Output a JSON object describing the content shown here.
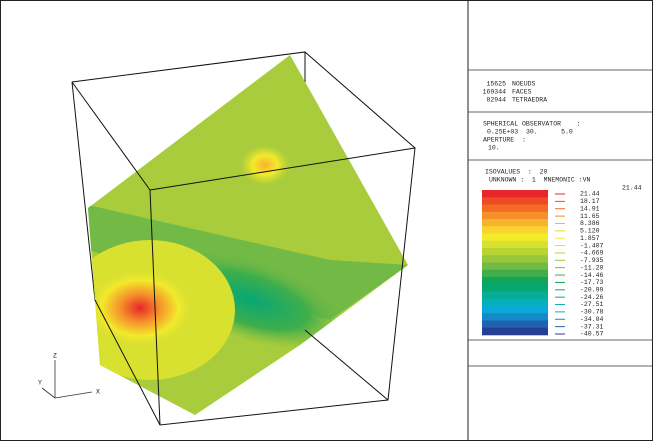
{
  "mesh_info": [
    {
      "count": "15625",
      "label": "NOEUDS"
    },
    {
      "count": "169344",
      "label": "FACES"
    },
    {
      "count": "82944",
      "label": "TETRAEDRA"
    }
  ],
  "observer": {
    "title": "SPHERICAL OBSERVATOR    :",
    "values": "0.25E+03  30.      5.0",
    "aperture_label": "APERTURE  :",
    "aperture": "10."
  },
  "isovalues": {
    "label": "ISOVALUES  :  20",
    "unknown": "UNKNOWN :  1  MNEMONIC :VN",
    "max": "21.44",
    "levels": [
      "21.44",
      "18.17",
      "14.91",
      "11.65",
      "8.386",
      "5.120",
      "1.857",
      "-1.407",
      "-4.669",
      "-7.935",
      "-11.20",
      "-14.46",
      "-17.73",
      "-20.99",
      "-24.26",
      "-27.51",
      "-30.78",
      "-34.04",
      "-37.31",
      "-40.57"
    ],
    "colors": [
      "#e8262a",
      "#ee4a26",
      "#f26a24",
      "#f5902a",
      "#f8b22d",
      "#f7d42e",
      "#f3ea2c",
      "#d8e030",
      "#b8d433",
      "#98c83a",
      "#72b945",
      "#3fae4c",
      "#10a55a",
      "#07a774",
      "#06ad97",
      "#07b0b8",
      "#0aa8d8",
      "#1589c9",
      "#2062b0",
      "#253f96"
    ]
  },
  "axes": {
    "z": "Z",
    "y": "Y",
    "x": "X"
  }
}
